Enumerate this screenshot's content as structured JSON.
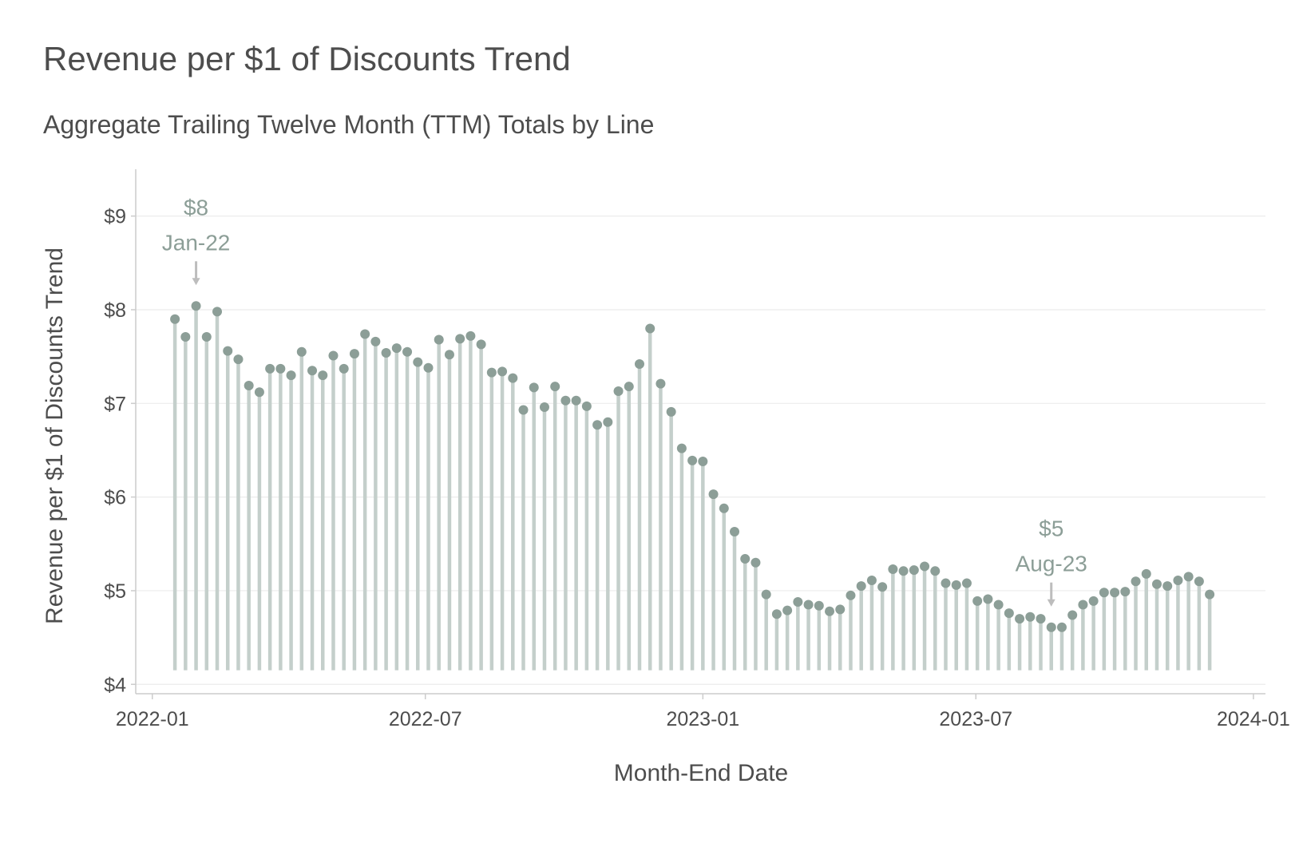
{
  "chart_data": {
    "type": "lollipop",
    "title": "Revenue per $1 of Discounts Trend",
    "subtitle": "Aggregate Trailing Twelve Month (TTM) Totals by Line",
    "xlabel": "Month-End Date",
    "ylabel": "Revenue per $1 of Discounts Trend",
    "xlim": [
      "2021-12-21",
      "2024-01-09"
    ],
    "ylim": [
      3.9,
      9.5
    ],
    "baseline": 4.15,
    "x_ticks": [
      {
        "date": "2022-01-01",
        "label": "2022-01"
      },
      {
        "date": "2022-07-01",
        "label": "2022-07"
      },
      {
        "date": "2023-01-01",
        "label": "2023-01"
      },
      {
        "date": "2023-07-01",
        "label": "2023-07"
      },
      {
        "date": "2024-01-01",
        "label": "2024-01"
      }
    ],
    "y_ticks": [
      {
        "value": 4,
        "label": "$4"
      },
      {
        "value": 5,
        "label": "$5"
      },
      {
        "value": 6,
        "label": "$6"
      },
      {
        "value": 7,
        "label": "$7"
      },
      {
        "value": 8,
        "label": "$8"
      },
      {
        "value": 9,
        "label": "$9"
      }
    ],
    "grid": true,
    "colors": {
      "bar": "#c4cfcb",
      "point": "#8c9e97",
      "annotation": "#8c9e97",
      "arrow": "#bdbdbd",
      "grid": "#ececec",
      "axis": "#cccccc"
    },
    "start_date": "2022-01-16",
    "step_days": 7,
    "values": [
      7.9,
      7.71,
      8.04,
      7.71,
      7.98,
      7.56,
      7.47,
      7.19,
      7.12,
      7.37,
      7.37,
      7.3,
      7.55,
      7.35,
      7.3,
      7.51,
      7.37,
      7.53,
      7.74,
      7.66,
      7.54,
      7.59,
      7.55,
      7.44,
      7.38,
      7.68,
      7.52,
      7.69,
      7.72,
      7.63,
      7.33,
      7.34,
      7.27,
      6.93,
      7.17,
      6.96,
      7.18,
      7.03,
      7.03,
      6.97,
      6.77,
      6.8,
      7.13,
      7.18,
      7.42,
      7.8,
      7.21,
      6.91,
      6.52,
      6.39,
      6.38,
      6.03,
      5.88,
      5.63,
      5.34,
      5.3,
      4.96,
      4.75,
      4.79,
      4.88,
      4.85,
      4.84,
      4.78,
      4.8,
      4.95,
      5.05,
      5.11,
      5.04,
      5.23,
      5.21,
      5.22,
      5.26,
      5.21,
      5.08,
      5.06,
      5.08,
      4.89,
      4.91,
      4.85,
      4.76,
      4.7,
      4.72,
      4.7,
      4.61,
      4.61,
      4.74,
      4.85,
      4.89,
      4.98,
      4.98,
      4.99,
      5.1,
      5.18,
      5.07,
      5.05,
      5.11,
      5.15,
      5.1,
      4.96
    ],
    "annotations": [
      {
        "value_label": "$8",
        "date_label": "Jan-22",
        "x_date": "2022-01-30",
        "y": 8.04
      },
      {
        "value_label": "$5",
        "date_label": "Aug-23",
        "x_date": "2023-08-20",
        "y": 4.61
      }
    ]
  }
}
